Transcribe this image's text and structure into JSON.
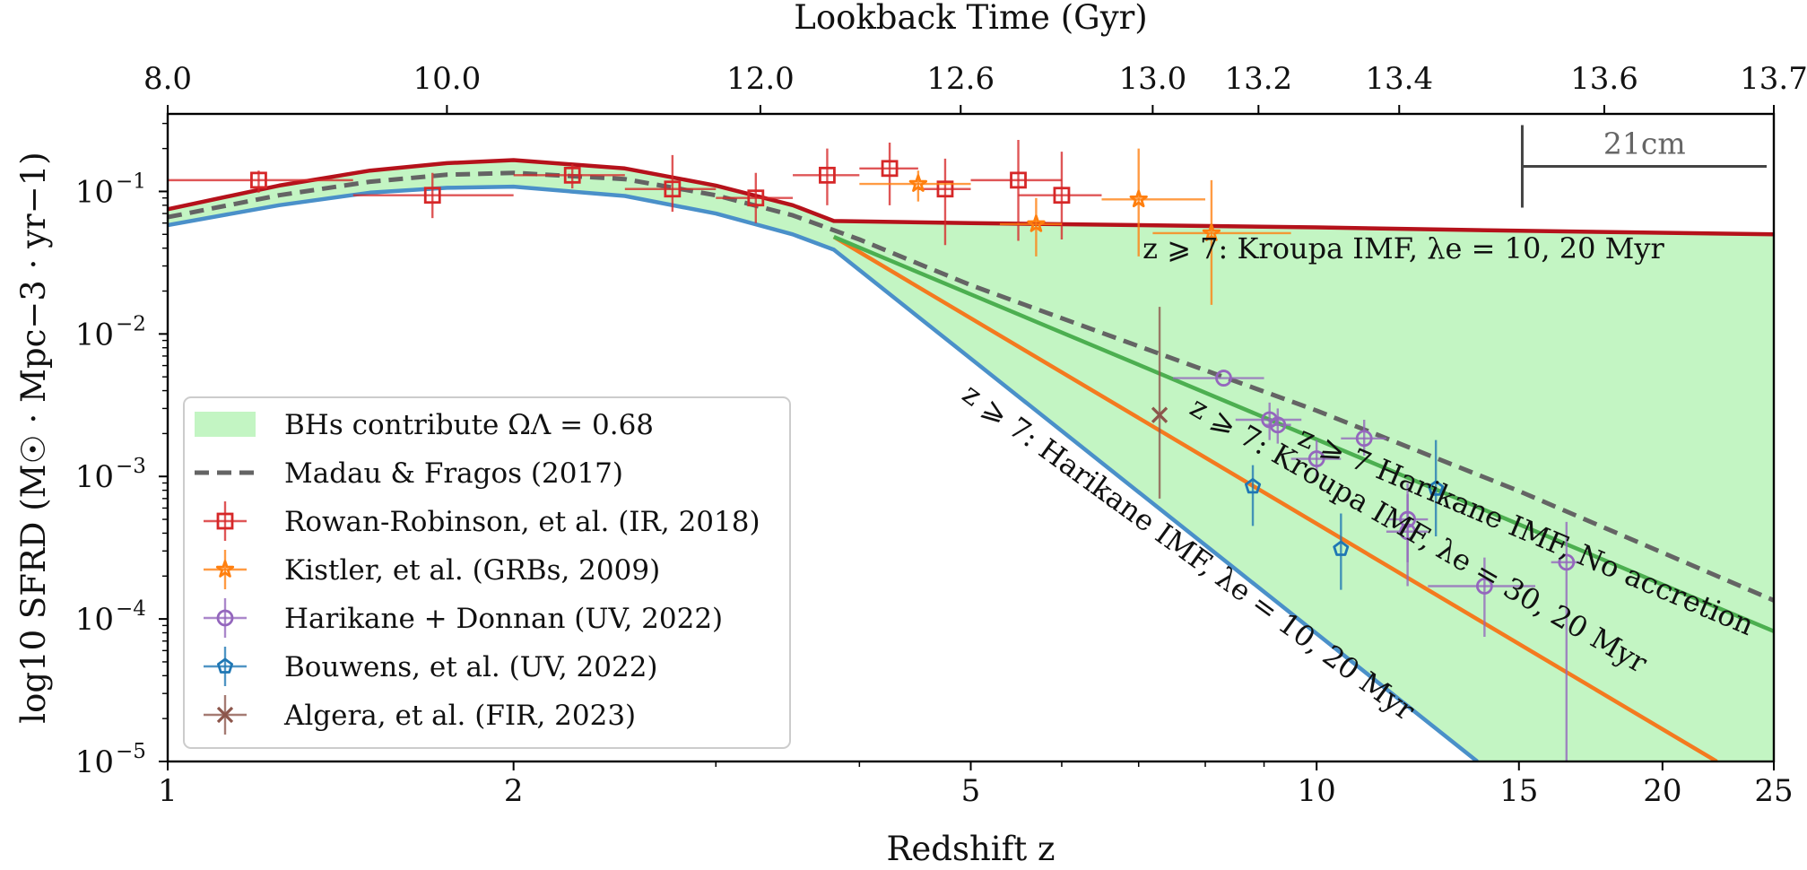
{
  "chart_data": {
    "type": "line",
    "xscale": "log",
    "yscale": "log",
    "xlim": [
      1,
      25
    ],
    "ylim": [
      1e-05,
      0.35
    ],
    "xlabel": "Redshift z",
    "ylabel": "log10 SFRD (M☉ · Mpc−3 · yr−1)",
    "top_axis_label": "Lookback Time (Gyr)",
    "x_ticks": [
      {
        "value": 1,
        "label": "1"
      },
      {
        "value": 2,
        "label": "2"
      },
      {
        "value": 5,
        "label": "5"
      },
      {
        "value": 10,
        "label": "10"
      },
      {
        "value": 15,
        "label": "15"
      },
      {
        "value": 20,
        "label": "20"
      },
      {
        "value": 25,
        "label": "25"
      }
    ],
    "top_ticks": [
      {
        "z": 1.0,
        "label": "8.0"
      },
      {
        "z": 1.75,
        "label": "10.0"
      },
      {
        "z": 3.28,
        "label": "12.0"
      },
      {
        "z": 4.9,
        "label": "12.6"
      },
      {
        "z": 7.2,
        "label": "13.0"
      },
      {
        "z": 8.9,
        "label": "13.2"
      },
      {
        "z": 11.8,
        "label": "13.4"
      },
      {
        "z": 17.8,
        "label": "13.6"
      },
      {
        "z": 25.0,
        "label": "13.7"
      }
    ],
    "y_ticks": [
      {
        "value": 0.1,
        "base": "10",
        "exp": "−1"
      },
      {
        "value": 0.01,
        "base": "10",
        "exp": "−2"
      },
      {
        "value": 0.001,
        "base": "10",
        "exp": "−3"
      },
      {
        "value": 0.0001,
        "base": "10",
        "exp": "−4"
      },
      {
        "value": 1e-05,
        "base": "10",
        "exp": "−5"
      }
    ],
    "fill_region": {
      "name": "BHs contribute ΩΛ = 0.68",
      "color": "#c3f5c3",
      "upper": [
        [
          1,
          0.075
        ],
        [
          1.25,
          0.11
        ],
        [
          1.5,
          0.14
        ],
        [
          1.75,
          0.158
        ],
        [
          2.0,
          0.166
        ],
        [
          2.5,
          0.145
        ],
        [
          3.0,
          0.11
        ],
        [
          3.5,
          0.08
        ],
        [
          3.8,
          0.062
        ],
        [
          5,
          0.06
        ],
        [
          10,
          0.056
        ],
        [
          15,
          0.053
        ],
        [
          25,
          0.05
        ]
      ],
      "lower": [
        [
          1,
          0.058
        ],
        [
          1.25,
          0.08
        ],
        [
          1.5,
          0.098
        ],
        [
          1.75,
          0.106
        ],
        [
          2.0,
          0.108
        ],
        [
          2.5,
          0.093
        ],
        [
          3.0,
          0.07
        ],
        [
          3.5,
          0.05
        ],
        [
          3.8,
          0.039
        ],
        [
          13.8,
          1e-05
        ],
        [
          25,
          1e-05
        ]
      ]
    },
    "series": [
      {
        "name": "z ⩾ 7: Kroupa IMF, λe = 10, 20 Myr",
        "color": "#b5121b",
        "width": 4.5,
        "points": [
          [
            1,
            0.075
          ],
          [
            1.25,
            0.11
          ],
          [
            1.5,
            0.14
          ],
          [
            1.75,
            0.158
          ],
          [
            2.0,
            0.166
          ],
          [
            2.5,
            0.145
          ],
          [
            3.0,
            0.11
          ],
          [
            3.5,
            0.08
          ],
          [
            3.8,
            0.062
          ],
          [
            5,
            0.06
          ],
          [
            10,
            0.056
          ],
          [
            15,
            0.053
          ],
          [
            25,
            0.05
          ]
        ]
      },
      {
        "name": "z ⩾ 7: Harikane IMF, λe = 10, 20 Myr",
        "color": "#4a90c9",
        "width": 4.5,
        "points": [
          [
            1,
            0.058
          ],
          [
            1.25,
            0.08
          ],
          [
            1.5,
            0.098
          ],
          [
            1.75,
            0.106
          ],
          [
            2.0,
            0.108
          ],
          [
            2.5,
            0.093
          ],
          [
            3.0,
            0.07
          ],
          [
            3.5,
            0.05
          ],
          [
            3.8,
            0.039
          ],
          [
            13.8,
            1e-05
          ]
        ]
      },
      {
        "name": "z ⩾ 7: Kroupa IMF, λe = 30, 20 Myr",
        "color": "#f47a1f",
        "width": 4.5,
        "points": [
          [
            3.8,
            0.048
          ],
          [
            22.3,
            1e-05
          ]
        ]
      },
      {
        "name": "z ⩾ 7 Harikane IMF, No accretion",
        "color": "#4caf50",
        "width": 4.5,
        "points": [
          [
            3.8,
            0.048
          ],
          [
            25,
            8.2e-05
          ]
        ]
      },
      {
        "name": "Madau & Fragos (2017)",
        "color": "#646464",
        "width": 5,
        "dash": "16,9",
        "points": [
          [
            1,
            0.066
          ],
          [
            1.25,
            0.094
          ],
          [
            1.5,
            0.117
          ],
          [
            1.75,
            0.131
          ],
          [
            2.0,
            0.135
          ],
          [
            2.5,
            0.122
          ],
          [
            3.0,
            0.094
          ],
          [
            3.5,
            0.068
          ],
          [
            4.0,
            0.046
          ],
          [
            5,
            0.022
          ],
          [
            7,
            0.0082
          ],
          [
            10,
            0.0029
          ],
          [
            15,
            0.00079
          ],
          [
            25,
            0.000135
          ]
        ]
      }
    ],
    "datasets": [
      {
        "name": "Rowan-Robinson, et al. (IR, 2018)",
        "color": "#d62728",
        "marker": "square",
        "points": [
          {
            "z": 1.2,
            "y": 0.12,
            "zlo": 1.0,
            "zhi": 1.45,
            "ylo": 0.098,
            "yhi": 0.14
          },
          {
            "z": 1.7,
            "y": 0.094,
            "zlo": 1.45,
            "zhi": 2.0,
            "ylo": 0.065,
            "yhi": 0.135
          },
          {
            "z": 2.25,
            "y": 0.13,
            "zlo": 2.0,
            "zhi": 2.5,
            "ylo": 0.105,
            "yhi": 0.155
          },
          {
            "z": 2.75,
            "y": 0.104,
            "zlo": 2.5,
            "zhi": 3.0,
            "ylo": 0.072,
            "yhi": 0.18
          },
          {
            "z": 3.25,
            "y": 0.09,
            "zlo": 3.0,
            "zhi": 3.5,
            "ylo": 0.06,
            "yhi": 0.135
          },
          {
            "z": 3.75,
            "y": 0.13,
            "zlo": 3.5,
            "zhi": 4.0,
            "ylo": 0.08,
            "yhi": 0.2
          },
          {
            "z": 4.25,
            "y": 0.145,
            "zlo": 4.0,
            "zhi": 4.5,
            "ylo": 0.08,
            "yhi": 0.22
          },
          {
            "z": 4.75,
            "y": 0.104,
            "zlo": 4.5,
            "zhi": 5.0,
            "ylo": 0.042,
            "yhi": 0.17
          },
          {
            "z": 5.5,
            "y": 0.12,
            "zlo": 5.0,
            "zhi": 6.0,
            "ylo": 0.045,
            "yhi": 0.23
          },
          {
            "z": 6.0,
            "y": 0.094,
            "zlo": 5.5,
            "zhi": 6.5,
            "ylo": 0.046,
            "yhi": 0.19
          }
        ]
      },
      {
        "name": "Kistler, et al. (GRBs, 2009)",
        "color": "#ff7f0e",
        "marker": "star",
        "points": [
          {
            "z": 4.5,
            "y": 0.113,
            "zlo": 4.0,
            "zhi": 5.0,
            "ylo": 0.085,
            "yhi": 0.14
          },
          {
            "z": 5.7,
            "y": 0.059,
            "zlo": 5.3,
            "zhi": 6.0,
            "ylo": 0.035,
            "yhi": 0.09
          },
          {
            "z": 7.0,
            "y": 0.088,
            "zlo": 6.5,
            "zhi": 8.0,
            "ylo": 0.035,
            "yhi": 0.2
          },
          {
            "z": 8.1,
            "y": 0.051,
            "zlo": 7.2,
            "zhi": 9.5,
            "ylo": 0.016,
            "yhi": 0.12
          }
        ]
      },
      {
        "name": "Harikane + Donnan (UV, 2022)",
        "color": "#9467bd",
        "marker": "circle",
        "points": [
          {
            "z": 8.3,
            "y": 0.0049,
            "zlo": 7.5,
            "zhi": 9.0,
            "ylo": 0.0049,
            "yhi": 0.0049
          },
          {
            "z": 9.1,
            "y": 0.0025,
            "zlo": 8.5,
            "zhi": 9.7,
            "ylo": 0.0018,
            "yhi": 0.0033
          },
          {
            "z": 9.25,
            "y": 0.0023,
            "zlo": 9.0,
            "zhi": 9.5,
            "ylo": 0.0017,
            "yhi": 0.003
          },
          {
            "z": 10.0,
            "y": 0.00133,
            "zlo": 9.5,
            "zhi": 10.5,
            "ylo": 0.001,
            "yhi": 0.0018
          },
          {
            "z": 11.0,
            "y": 0.00185,
            "zlo": 10.5,
            "zhi": 11.5,
            "ylo": 0.0014,
            "yhi": 0.0025
          },
          {
            "z": 12.0,
            "y": 0.0005,
            "zlo": 11.5,
            "zhi": 12.5,
            "ylo": 0.00025,
            "yhi": 0.0009
          },
          {
            "z": 12.0,
            "y": 0.00041,
            "zlo": 11.5,
            "zhi": 12.5,
            "ylo": 0.00017,
            "yhi": 0.00075
          },
          {
            "z": 14.0,
            "y": 0.00017,
            "zlo": 12.5,
            "zhi": 15.5,
            "ylo": 7.5e-05,
            "yhi": 0.00027
          },
          {
            "z": 16.5,
            "y": 0.00025,
            "zlo": 16.0,
            "zhi": 17.0,
            "ylo": 1e-05,
            "yhi": 0.00048
          }
        ]
      },
      {
        "name": "Bouwens, et al. (UV, 2022)",
        "color": "#1f77b4",
        "marker": "pentagon",
        "points": [
          {
            "z": 8.8,
            "y": 0.00085,
            "zlo": 8.8,
            "zhi": 8.8,
            "ylo": 0.00045,
            "yhi": 0.0012
          },
          {
            "z": 10.5,
            "y": 0.00031,
            "zlo": 10.5,
            "zhi": 10.5,
            "ylo": 0.00016,
            "yhi": 0.00055
          },
          {
            "z": 12.7,
            "y": 0.00082,
            "zlo": 12.7,
            "zhi": 12.7,
            "ylo": 0.00038,
            "yhi": 0.0018
          }
        ]
      },
      {
        "name": "Algera, et al. (FIR, 2023)",
        "color": "#8c564b",
        "marker": "x",
        "points": [
          {
            "z": 7.3,
            "y": 0.0027,
            "zlo": 7.3,
            "zhi": 7.3,
            "ylo": 0.0007,
            "yhi": 0.0155
          }
        ]
      }
    ],
    "annotations": [
      {
        "text": "z ⩾ 7: Kroupa IMF, λe = 10, 20 Myr",
        "z": 11.9,
        "y": 0.034,
        "angle": 0
      },
      {
        "text": "z ⩾ 7: Harikane IMF, λe = 10, 20 Myr",
        "z": 7.65,
        "y": 0.00026,
        "angle": 36
      },
      {
        "text": "z ⩾ 7: Kroupa IMF, λe = 30, 20 Myr",
        "z": 12.15,
        "y": 0.00034,
        "angle": 30
      },
      {
        "text": "z ⩾ 7 Harikane IMF, No accretion",
        "z": 15.1,
        "y": 0.00036,
        "angle": 23
      }
    ],
    "scale_bar": {
      "label": "21cm",
      "z_start": 15.1,
      "z_end": 25,
      "y": 0.15
    },
    "legend": {
      "location": "lower-left",
      "entries": [
        {
          "label": "BHs contribute ΩΛ = 0.68",
          "kind": "patch",
          "color": "#c3f5c3"
        },
        {
          "label": "Madau & Fragos (2017)",
          "kind": "dashed",
          "color": "#646464"
        },
        {
          "label": "Rowan-Robinson, et al. (IR, 2018)",
          "kind": "marker",
          "marker": "square",
          "color": "#d62728"
        },
        {
          "label": "Kistler, et al. (GRBs, 2009)",
          "kind": "marker",
          "marker": "star",
          "color": "#ff7f0e"
        },
        {
          "label": "Harikane + Donnan (UV, 2022)",
          "kind": "marker",
          "marker": "circle",
          "color": "#9467bd"
        },
        {
          "label": "Bouwens, et al. (UV, 2022)",
          "kind": "marker",
          "marker": "pentagon",
          "color": "#1f77b4"
        },
        {
          "label": "Algera, et al. (FIR, 2023)",
          "kind": "marker",
          "marker": "x",
          "color": "#8c564b"
        }
      ]
    }
  }
}
